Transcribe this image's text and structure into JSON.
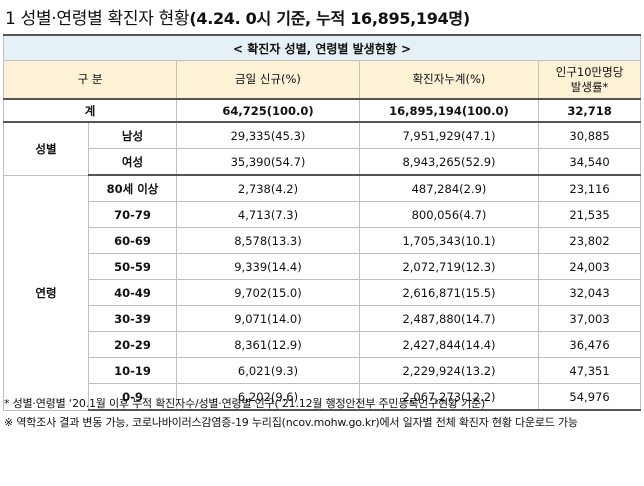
{
  "title": {
    "main": "1 성별·연령별 확진자 현황",
    "sub": "(4.24. 0시 기준, 누적 16,895,194명)"
  },
  "table": {
    "banner": "< 확진자 성별, 연령별 발생현황 >",
    "headers": {
      "category": "구 분",
      "new_cases": "금일 신규(%)",
      "cumulative": "확진자누계(%)",
      "per100k_line1": "인구10만명당",
      "per100k_line2": "발생률*"
    },
    "total": {
      "label": "계",
      "new_cases": "64,725(100.0)",
      "cumulative": "16,895,194(100.0)",
      "per100k": "32,718"
    },
    "sex_group": "성별",
    "sex": [
      {
        "label": "남성",
        "new_cases": "29,335(45.3)",
        "cumulative": "7,951,929(47.1)",
        "per100k": "30,885"
      },
      {
        "label": "여성",
        "new_cases": "35,390(54.7)",
        "cumulative": "8,943,265(52.9)",
        "per100k": "34,540"
      }
    ],
    "age_group": "연령",
    "age": [
      {
        "label": "80세 이상",
        "new_cases": "2,738(4.2)",
        "cumulative": "487,284(2.9)",
        "per100k": "23,116"
      },
      {
        "label": "70-79",
        "new_cases": "4,713(7.3)",
        "cumulative": "800,056(4.7)",
        "per100k": "21,535"
      },
      {
        "label": "60-69",
        "new_cases": "8,578(13.3)",
        "cumulative": "1,705,343(10.1)",
        "per100k": "23,802"
      },
      {
        "label": "50-59",
        "new_cases": "9,339(14.4)",
        "cumulative": "2,072,719(12.3)",
        "per100k": "24,003"
      },
      {
        "label": "40-49",
        "new_cases": "9,702(15.0)",
        "cumulative": "2,616,871(15.5)",
        "per100k": "32,043"
      },
      {
        "label": "30-39",
        "new_cases": "9,071(14.0)",
        "cumulative": "2,487,880(14.7)",
        "per100k": "37,003"
      },
      {
        "label": "20-29",
        "new_cases": "8,361(12.9)",
        "cumulative": "2,427,844(14.4)",
        "per100k": "36,476"
      },
      {
        "label": "10-19",
        "new_cases": "6,021(9.3)",
        "cumulative": "2,229,924(13.2)",
        "per100k": "47,351"
      },
      {
        "label": "0-9",
        "new_cases": "6,202(9.6)",
        "cumulative": "2,067,273(12.2)",
        "per100k": "54,976"
      }
    ]
  },
  "notes": [
    "* 성별·연령별 ‘20.1월 이후 누적 확진자수/성별·연령별 인구(‘21.12월 행정안전부 주민등록인구현황 기준)",
    "※ 역학조사 결과 변동 가능, 코로나바이러스감염증-19 누리집(ncov.mohw.go.kr)에서 일자별 전체 확진자 현황 다운로드 가능"
  ]
}
